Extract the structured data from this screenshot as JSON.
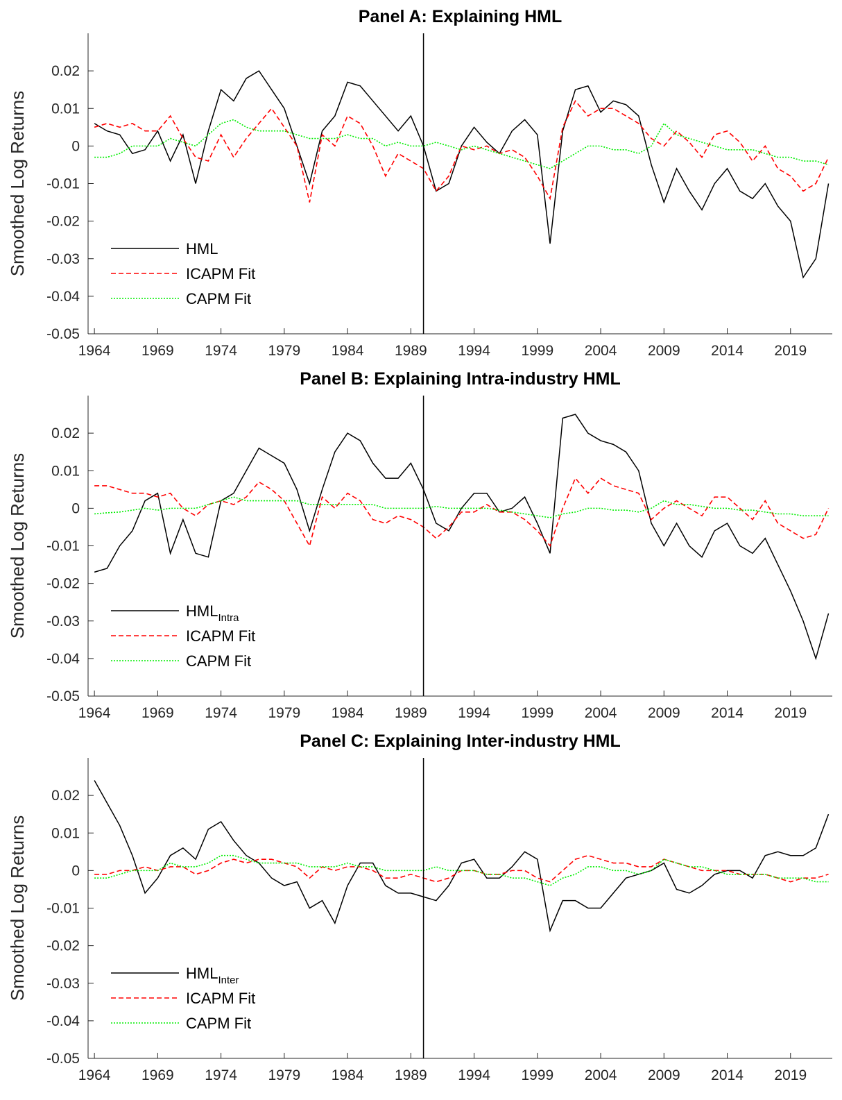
{
  "chart_data": [
    {
      "type": "line",
      "title": "Panel A: Explaining HML",
      "ylabel": "Smoothed Log Returns",
      "x": [
        1964,
        1965,
        1966,
        1967,
        1968,
        1969,
        1970,
        1971,
        1972,
        1973,
        1974,
        1975,
        1976,
        1977,
        1978,
        1979,
        1980,
        1981,
        1982,
        1983,
        1984,
        1985,
        1986,
        1987,
        1988,
        1989,
        1990,
        1991,
        1992,
        1993,
        1994,
        1995,
        1996,
        1997,
        1998,
        1999,
        2000,
        2001,
        2002,
        2003,
        2004,
        2005,
        2006,
        2007,
        2008,
        2009,
        2010,
        2011,
        2012,
        2013,
        2014,
        2015,
        2016,
        2017,
        2018,
        2019,
        2020,
        2021,
        2022
      ],
      "series": [
        {
          "name": "HML",
          "color": "#000000",
          "dash": "solid",
          "values": [
            0.006,
            0.004,
            0.003,
            -0.002,
            -0.001,
            0.004,
            -0.004,
            0.003,
            -0.01,
            0.004,
            0.015,
            0.012,
            0.018,
            0.02,
            0.015,
            0.01,
            0.0,
            -0.01,
            0.004,
            0.008,
            0.017,
            0.016,
            0.012,
            0.008,
            0.004,
            0.008,
            0.0,
            -0.012,
            -0.01,
            0.0,
            0.005,
            0.001,
            -0.002,
            0.004,
            0.007,
            0.003,
            -0.026,
            0.004,
            0.015,
            0.016,
            0.009,
            0.012,
            0.011,
            0.008,
            -0.005,
            -0.015,
            -0.006,
            -0.012,
            -0.017,
            -0.01,
            -0.006,
            -0.012,
            -0.014,
            -0.01,
            -0.016,
            -0.02,
            -0.035,
            -0.03,
            -0.01
          ]
        },
        {
          "name": "ICAPM Fit",
          "color": "#ff0000",
          "dash": "dashed",
          "values": [
            0.005,
            0.006,
            0.005,
            0.006,
            0.004,
            0.004,
            0.008,
            0.002,
            -0.003,
            -0.004,
            0.003,
            -0.003,
            0.002,
            0.006,
            0.01,
            0.005,
            0.0,
            -0.015,
            0.003,
            0.0,
            0.008,
            0.006,
            0.0,
            -0.008,
            -0.002,
            -0.004,
            -0.006,
            -0.012,
            -0.008,
            0.0,
            -0.001,
            0.0,
            -0.002,
            -0.001,
            -0.003,
            -0.008,
            -0.014,
            0.005,
            0.012,
            0.008,
            0.01,
            0.01,
            0.008,
            0.006,
            0.002,
            0.0,
            0.004,
            0.001,
            -0.003,
            0.003,
            0.004,
            0.001,
            -0.004,
            0.0,
            -0.006,
            -0.008,
            -0.012,
            -0.01,
            -0.003
          ]
        },
        {
          "name": "CAPM Fit",
          "color": "#00ee00",
          "dash": "dotted",
          "values": [
            -0.003,
            -0.003,
            -0.002,
            0.0,
            0.0,
            0.0,
            0.002,
            0.001,
            0.0,
            0.003,
            0.006,
            0.007,
            0.005,
            0.004,
            0.004,
            0.004,
            0.003,
            0.002,
            0.002,
            0.002,
            0.003,
            0.002,
            0.002,
            0.0,
            0.001,
            0.0,
            0.0,
            0.001,
            0.0,
            -0.001,
            0.0,
            -0.001,
            -0.002,
            -0.003,
            -0.004,
            -0.005,
            -0.006,
            -0.004,
            -0.002,
            0.0,
            0.0,
            -0.001,
            -0.001,
            -0.002,
            0.0,
            0.006,
            0.003,
            0.002,
            0.001,
            0.0,
            -0.001,
            -0.001,
            -0.001,
            -0.002,
            -0.003,
            -0.003,
            -0.004,
            -0.004,
            -0.005
          ]
        }
      ],
      "xlim": [
        1963.5,
        2022.3
      ],
      "ylim": [
        -0.05,
        0.03
      ],
      "xticks": [
        1964,
        1969,
        1974,
        1979,
        1984,
        1989,
        1994,
        1999,
        2004,
        2009,
        2014,
        2019
      ],
      "yticks": [
        0.02,
        0.01,
        0,
        -0.01,
        -0.02,
        -0.03,
        -0.04,
        -0.05
      ],
      "vline": 1990,
      "legend": "southwest"
    },
    {
      "type": "line",
      "title": "Panel B: Explaining Intra-industry HML",
      "ylabel": "Smoothed Log Returns",
      "x": [
        1964,
        1965,
        1966,
        1967,
        1968,
        1969,
        1970,
        1971,
        1972,
        1973,
        1974,
        1975,
        1976,
        1977,
        1978,
        1979,
        1980,
        1981,
        1982,
        1983,
        1984,
        1985,
        1986,
        1987,
        1988,
        1989,
        1990,
        1991,
        1992,
        1993,
        1994,
        1995,
        1996,
        1997,
        1998,
        1999,
        2000,
        2001,
        2002,
        2003,
        2004,
        2005,
        2006,
        2007,
        2008,
        2009,
        2010,
        2011,
        2012,
        2013,
        2014,
        2015,
        2016,
        2017,
        2018,
        2019,
        2020,
        2021,
        2022
      ],
      "series": [
        {
          "name": "HML",
          "subscript": "Intra",
          "color": "#000000",
          "dash": "solid",
          "values": [
            -0.017,
            -0.016,
            -0.01,
            -0.006,
            0.002,
            0.004,
            -0.012,
            -0.003,
            -0.012,
            -0.013,
            0.002,
            0.004,
            0.01,
            0.016,
            0.014,
            0.012,
            0.005,
            -0.006,
            0.005,
            0.015,
            0.02,
            0.018,
            0.012,
            0.008,
            0.008,
            0.012,
            0.005,
            -0.004,
            -0.006,
            0.0,
            0.004,
            0.004,
            -0.001,
            0.0,
            0.003,
            -0.004,
            -0.012,
            0.024,
            0.025,
            0.02,
            0.018,
            0.017,
            0.015,
            0.01,
            -0.004,
            -0.01,
            -0.004,
            -0.01,
            -0.013,
            -0.006,
            -0.004,
            -0.01,
            -0.012,
            -0.008,
            -0.015,
            -0.022,
            -0.03,
            -0.04,
            -0.028
          ]
        },
        {
          "name": "ICAPM Fit",
          "color": "#ff0000",
          "dash": "dashed",
          "values": [
            0.006,
            0.006,
            0.005,
            0.004,
            0.004,
            0.003,
            0.004,
            0.0,
            -0.002,
            0.001,
            0.002,
            0.001,
            0.003,
            0.007,
            0.005,
            0.002,
            -0.004,
            -0.01,
            0.003,
            0.0,
            0.004,
            0.002,
            -0.003,
            -0.004,
            -0.002,
            -0.003,
            -0.005,
            -0.008,
            -0.005,
            -0.001,
            -0.001,
            0.001,
            -0.001,
            -0.001,
            -0.003,
            -0.006,
            -0.01,
            0.0,
            0.008,
            0.004,
            0.008,
            0.006,
            0.005,
            0.004,
            -0.003,
            0.0,
            0.002,
            0.0,
            -0.002,
            0.003,
            0.003,
            0.0,
            -0.003,
            0.002,
            -0.004,
            -0.006,
            -0.008,
            -0.007,
            0.0
          ]
        },
        {
          "name": "CAPM Fit",
          "color": "#00ee00",
          "dash": "dotted",
          "values": [
            -0.0015,
            -0.0012,
            -0.001,
            -0.0005,
            0.0,
            -0.0005,
            0.0,
            0.0,
            0.0,
            0.001,
            0.002,
            0.003,
            0.002,
            0.002,
            0.002,
            0.002,
            0.002,
            0.001,
            0.001,
            0.001,
            0.001,
            0.001,
            0.001,
            0.0,
            0.0,
            0.0,
            0.0,
            0.0005,
            0.0,
            0.0,
            0.0,
            0.0,
            -0.0005,
            -0.001,
            -0.0015,
            -0.002,
            -0.0025,
            -0.0015,
            -0.001,
            0.0,
            0.0,
            -0.0005,
            -0.0005,
            -0.001,
            0.0,
            0.002,
            0.001,
            0.001,
            0.0005,
            0.0,
            0.0,
            -0.0005,
            -0.0005,
            -0.001,
            -0.0015,
            -0.0015,
            -0.002,
            -0.002,
            -0.002
          ]
        }
      ],
      "xlim": [
        1963.5,
        2022.3
      ],
      "ylim": [
        -0.05,
        0.03
      ],
      "xticks": [
        1964,
        1969,
        1974,
        1979,
        1984,
        1989,
        1994,
        1999,
        2004,
        2009,
        2014,
        2019
      ],
      "yticks": [
        0.02,
        0.01,
        0,
        -0.01,
        -0.02,
        -0.03,
        -0.04,
        -0.05
      ],
      "vline": 1990,
      "legend": "southwest"
    },
    {
      "type": "line",
      "title": "Panel C: Explaining Inter-industry HML",
      "ylabel": "Smoothed Log Returns",
      "x": [
        1964,
        1965,
        1966,
        1967,
        1968,
        1969,
        1970,
        1971,
        1972,
        1973,
        1974,
        1975,
        1976,
        1977,
        1978,
        1979,
        1980,
        1981,
        1982,
        1983,
        1984,
        1985,
        1986,
        1987,
        1988,
        1989,
        1990,
        1991,
        1992,
        1993,
        1994,
        1995,
        1996,
        1997,
        1998,
        1999,
        2000,
        2001,
        2002,
        2003,
        2004,
        2005,
        2006,
        2007,
        2008,
        2009,
        2010,
        2011,
        2012,
        2013,
        2014,
        2015,
        2016,
        2017,
        2018,
        2019,
        2020,
        2021,
        2022
      ],
      "series": [
        {
          "name": "HML",
          "subscript": "Inter",
          "color": "#000000",
          "dash": "solid",
          "values": [
            0.024,
            0.018,
            0.012,
            0.004,
            -0.006,
            -0.002,
            0.004,
            0.006,
            0.003,
            0.011,
            0.013,
            0.008,
            0.004,
            0.002,
            -0.002,
            -0.004,
            -0.003,
            -0.01,
            -0.008,
            -0.014,
            -0.004,
            0.002,
            0.002,
            -0.004,
            -0.006,
            -0.006,
            -0.007,
            -0.008,
            -0.004,
            0.002,
            0.003,
            -0.002,
            -0.002,
            0.001,
            0.005,
            0.003,
            -0.016,
            -0.008,
            -0.008,
            -0.01,
            -0.01,
            -0.006,
            -0.002,
            -0.001,
            0.0,
            0.002,
            -0.005,
            -0.006,
            -0.004,
            -0.001,
            0.0,
            0.0,
            -0.002,
            0.004,
            0.005,
            0.004,
            0.004,
            0.006,
            0.015
          ]
        },
        {
          "name": "ICAPM Fit",
          "color": "#ff0000",
          "dash": "dashed",
          "values": [
            -0.001,
            -0.001,
            0.0,
            0.0,
            0.001,
            0.0,
            0.001,
            0.001,
            -0.001,
            0.0,
            0.002,
            0.003,
            0.002,
            0.003,
            0.003,
            0.002,
            0.001,
            -0.002,
            0.001,
            0.0,
            0.001,
            0.001,
            0.0,
            -0.002,
            -0.002,
            -0.001,
            -0.002,
            -0.003,
            -0.002,
            0.0,
            0.0,
            -0.001,
            -0.001,
            0.0,
            0.0,
            -0.002,
            -0.003,
            0.0,
            0.003,
            0.004,
            0.003,
            0.002,
            0.002,
            0.001,
            0.001,
            0.003,
            0.002,
            0.001,
            0.0,
            0.0,
            0.0,
            -0.001,
            -0.001,
            -0.001,
            -0.002,
            -0.003,
            -0.002,
            -0.002,
            -0.001
          ]
        },
        {
          "name": "CAPM Fit",
          "color": "#00ee00",
          "dash": "dotted",
          "values": [
            -0.002,
            -0.002,
            -0.001,
            0.0,
            0.0,
            0.0,
            0.002,
            0.001,
            0.001,
            0.002,
            0.004,
            0.004,
            0.003,
            0.002,
            0.002,
            0.002,
            0.002,
            0.001,
            0.001,
            0.001,
            0.002,
            0.001,
            0.001,
            0.0,
            0.0,
            0.0,
            0.0,
            0.001,
            0.0,
            0.0,
            0.0,
            -0.001,
            -0.001,
            -0.002,
            -0.002,
            -0.003,
            -0.004,
            -0.002,
            -0.001,
            0.001,
            0.001,
            0.0,
            0.0,
            -0.001,
            0.0,
            0.003,
            0.002,
            0.001,
            0.001,
            0.0,
            -0.001,
            -0.001,
            -0.001,
            -0.001,
            -0.002,
            -0.002,
            -0.002,
            -0.003,
            -0.003
          ]
        }
      ],
      "xlim": [
        1963.5,
        2022.3
      ],
      "ylim": [
        -0.05,
        0.03
      ],
      "xticks": [
        1964,
        1969,
        1974,
        1979,
        1984,
        1989,
        1994,
        1999,
        2004,
        2009,
        2014,
        2019
      ],
      "yticks": [
        0.02,
        0.01,
        0,
        -0.01,
        -0.02,
        -0.03,
        -0.04,
        -0.05
      ],
      "vline": 1990,
      "legend": "southwest"
    }
  ]
}
